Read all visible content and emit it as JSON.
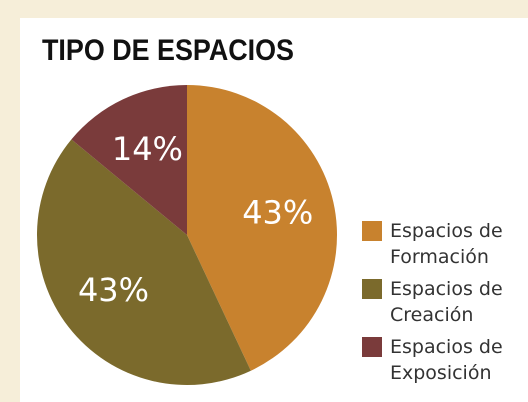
{
  "chart_data": {
    "type": "pie",
    "title": "TIPO DE ESPACIOS",
    "categories": [
      "Espacios de Formación",
      "Espacios de Creación",
      "Espacios de Exposición"
    ],
    "values": [
      43,
      43,
      14
    ],
    "value_labels": [
      "43%",
      "43%",
      "14%"
    ],
    "colors": [
      "#c8822e",
      "#7b6a2c",
      "#7a3b3b"
    ],
    "legend": "right"
  }
}
